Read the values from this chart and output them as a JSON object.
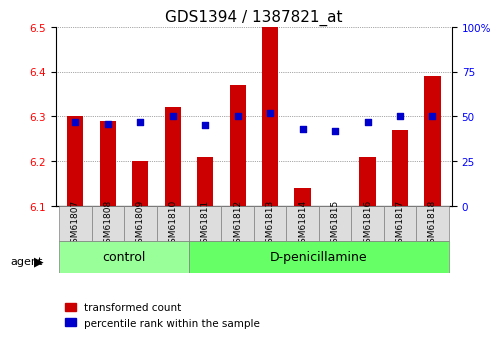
{
  "title": "GDS1394 / 1387821_at",
  "samples": [
    "GSM61807",
    "GSM61808",
    "GSM61809",
    "GSM61810",
    "GSM61811",
    "GSM61812",
    "GSM61813",
    "GSM61814",
    "GSM61815",
    "GSM61816",
    "GSM61817",
    "GSM61818"
  ],
  "transformed_count": [
    6.3,
    6.29,
    6.2,
    6.32,
    6.21,
    6.37,
    6.5,
    6.14,
    6.1,
    6.21,
    6.27,
    6.39
  ],
  "percentile_rank": [
    47,
    46,
    47,
    50,
    45,
    50,
    52,
    43,
    42,
    47,
    50,
    50
  ],
  "control_group": [
    0,
    1,
    2,
    3
  ],
  "treatment_group": [
    4,
    5,
    6,
    7,
    8,
    9,
    10,
    11
  ],
  "ylim_left": [
    6.1,
    6.5
  ],
  "ylim_right": [
    0,
    100
  ],
  "yticks_left": [
    6.1,
    6.2,
    6.3,
    6.4,
    6.5
  ],
  "yticks_right": [
    0,
    25,
    50,
    75,
    100
  ],
  "bar_color": "#cc0000",
  "dot_color": "#0000cc",
  "bar_bottom": 6.1,
  "bar_width": 0.5,
  "control_label": "control",
  "treatment_label": "D-penicillamine",
  "agent_label": "agent",
  "legend_bar_label": "transformed count",
  "legend_dot_label": "percentile rank within the sample",
  "control_bg": "#99ff99",
  "treatment_bg": "#66ff66",
  "xticklabel_bg": "#dddddd",
  "grid_color": "#555555",
  "title_fontsize": 11,
  "axis_fontsize": 8,
  "tick_fontsize": 7.5
}
